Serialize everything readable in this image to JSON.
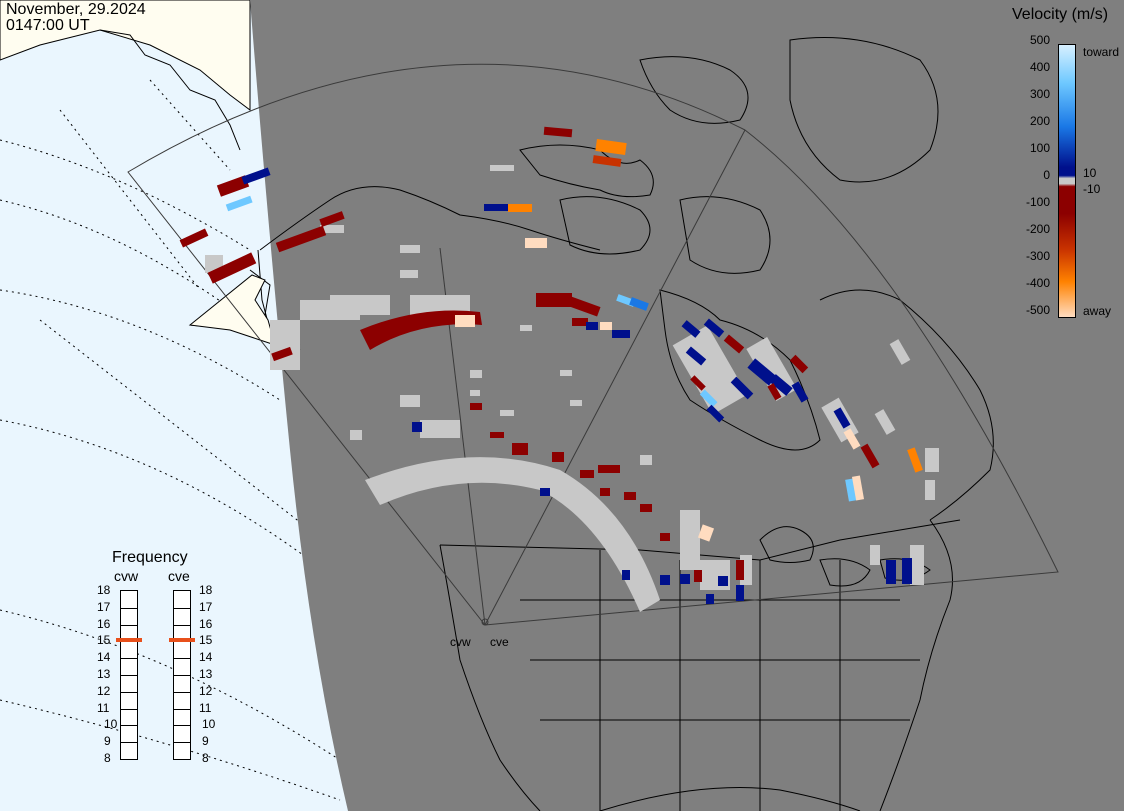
{
  "header": {
    "date": "November, 29.2024",
    "time": "0147:00 UT"
  },
  "velocity_legend": {
    "title": "Velocity (m/s)",
    "left_ticks": [
      "500",
      "400",
      "300",
      "200",
      "100",
      "0",
      "-100",
      "-200",
      "-300",
      "-400",
      "-500"
    ],
    "right_labels": {
      "toward": "toward",
      "pos": "10",
      "neg": "-10",
      "away": "away"
    },
    "colors": {
      "toward_top": "#d7f0ff",
      "light_blue": "#6ec8ff",
      "mid_blue": "#1a78e6",
      "dark_blue": "#00108c",
      "near_zero_low_velocity": "#c8c8c8",
      "dark_red": "#8c0000",
      "red": "#c83200",
      "orange": "#ff8200",
      "away_bottom": "#ffdcc0"
    }
  },
  "frequency_panel": {
    "title": "Frequency",
    "radars": [
      {
        "name": "cvw",
        "current_mhz": 15
      },
      {
        "name": "cve",
        "current_mhz": 15
      }
    ],
    "scale_min": 8,
    "scale_max": 18,
    "labels": [
      "18",
      "17",
      "16",
      "15",
      "14",
      "13",
      "12",
      "11",
      "10",
      "9",
      "8"
    ]
  },
  "map": {
    "site_labels": [
      "cvw",
      "cve"
    ],
    "colors": {
      "night_side": "#7f7f7f",
      "day_ocean": "#eaf6fe",
      "day_land": "#fffdf0",
      "coast": "#000000",
      "fov_outline": "#3a3a3a",
      "gridlines": "#000000"
    },
    "icons": [
      "map-projection",
      "radar-fan",
      "coastline"
    ]
  }
}
